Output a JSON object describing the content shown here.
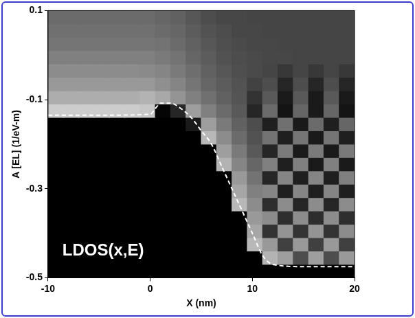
{
  "chart_data": {
    "type": "heatmap",
    "x_label": "X (nm)",
    "y_label": "A [EL] (1/eV-m)",
    "xlim": [
      -10,
      20
    ],
    "ylim": [
      -0.5,
      0.1
    ],
    "xticks": [
      -10,
      0,
      10,
      20
    ],
    "yticks": [
      -0.5,
      -0.3,
      -0.1,
      0.1
    ],
    "grid": false,
    "zlim": [
      0,
      1
    ],
    "x_bins": [
      -10,
      -8.5,
      -7,
      -5.5,
      -4,
      -2.5,
      -1,
      0.5,
      2,
      3.5,
      5,
      6.5,
      8,
      9.5,
      11,
      12.5,
      14,
      15.5,
      17,
      18.5,
      20
    ],
    "y_bins": [
      -0.5,
      -0.47,
      -0.44,
      -0.41,
      -0.38,
      -0.35,
      -0.32,
      -0.29,
      -0.26,
      -0.23,
      -0.2,
      -0.17,
      -0.14,
      -0.11,
      -0.08,
      -0.05,
      -0.02,
      0.01,
      0.04,
      0.07,
      0.1
    ],
    "cells": [
      [
        0,
        0,
        0,
        0,
        0,
        0,
        0,
        0,
        0,
        0,
        0,
        0,
        0,
        0,
        0,
        0,
        0,
        0,
        0,
        0
      ],
      [
        0,
        0,
        0,
        0,
        0,
        0,
        0,
        0,
        0,
        0,
        0,
        0,
        0,
        0,
        0.7,
        0.62,
        0.3,
        0.62,
        0.3,
        0.6
      ],
      [
        0,
        0,
        0,
        0,
        0,
        0,
        0,
        0,
        0,
        0,
        0,
        0,
        0,
        0.72,
        0.6,
        0.25,
        0.6,
        0.25,
        0.6,
        0.25
      ],
      [
        0,
        0,
        0,
        0,
        0,
        0,
        0,
        0,
        0,
        0,
        0,
        0,
        0,
        0.65,
        0.2,
        0.58,
        0.2,
        0.58,
        0.2,
        0.55
      ],
      [
        0,
        0,
        0,
        0,
        0,
        0,
        0,
        0,
        0,
        0,
        0,
        0,
        0,
        0.6,
        0.55,
        0.18,
        0.55,
        0.18,
        0.55,
        0.18
      ],
      [
        0,
        0,
        0,
        0,
        0,
        0,
        0,
        0,
        0,
        0,
        0,
        0,
        0.72,
        0.55,
        0.18,
        0.55,
        0.15,
        0.55,
        0.15,
        0.55
      ],
      [
        0,
        0,
        0,
        0,
        0,
        0,
        0,
        0,
        0,
        0,
        0,
        0,
        0.65,
        0.5,
        0.52,
        0.12,
        0.52,
        0.12,
        0.52,
        0.12
      ],
      [
        0,
        0,
        0,
        0,
        0,
        0,
        0,
        0,
        0,
        0,
        0,
        0,
        0.6,
        0.45,
        0.15,
        0.52,
        0.12,
        0.52,
        0.12,
        0.5
      ],
      [
        0,
        0,
        0,
        0,
        0,
        0,
        0,
        0,
        0,
        0,
        0,
        0.7,
        0.52,
        0.4,
        0.5,
        0.12,
        0.5,
        0.1,
        0.5,
        0.1
      ],
      [
        0,
        0,
        0,
        0,
        0,
        0,
        0,
        0,
        0,
        0,
        0,
        0.62,
        0.48,
        0.35,
        0.15,
        0.48,
        0.1,
        0.48,
        0.1,
        0.48
      ],
      [
        0,
        0,
        0,
        0,
        0,
        0,
        0,
        0,
        0,
        0,
        0.72,
        0.55,
        0.42,
        0.32,
        0.45,
        0.12,
        0.46,
        0.1,
        0.46,
        0.12
      ],
      [
        0,
        0,
        0,
        0,
        0,
        0,
        0,
        0,
        0,
        0.1,
        0.62,
        0.48,
        0.38,
        0.3,
        0.12,
        0.44,
        0.1,
        0.42,
        0.12,
        0.4
      ],
      [
        0.8,
        0.8,
        0.8,
        0.8,
        0.8,
        0.8,
        0.78,
        0.02,
        0.15,
        0.62,
        0.5,
        0.42,
        0.35,
        0.15,
        0.42,
        0.08,
        0.4,
        0.1,
        0.4,
        0.08
      ],
      [
        0.68,
        0.68,
        0.68,
        0.68,
        0.68,
        0.68,
        0.7,
        0.66,
        0.58,
        0.5,
        0.44,
        0.38,
        0.33,
        0.2,
        0.35,
        0.1,
        0.35,
        0.1,
        0.35,
        0.1
      ],
      [
        0.6,
        0.6,
        0.6,
        0.6,
        0.6,
        0.6,
        0.6,
        0.56,
        0.52,
        0.46,
        0.4,
        0.36,
        0.32,
        0.26,
        0.3,
        0.15,
        0.3,
        0.15,
        0.3,
        0.15
      ],
      [
        0.55,
        0.55,
        0.55,
        0.55,
        0.55,
        0.55,
        0.54,
        0.52,
        0.48,
        0.43,
        0.38,
        0.34,
        0.31,
        0.29,
        0.27,
        0.22,
        0.27,
        0.22,
        0.27,
        0.22
      ],
      [
        0.5,
        0.5,
        0.5,
        0.5,
        0.5,
        0.5,
        0.5,
        0.48,
        0.45,
        0.4,
        0.36,
        0.32,
        0.3,
        0.29,
        0.28,
        0.28,
        0.27,
        0.27,
        0.27,
        0.27
      ],
      [
        0.46,
        0.46,
        0.46,
        0.46,
        0.46,
        0.46,
        0.46,
        0.45,
        0.42,
        0.38,
        0.34,
        0.31,
        0.29,
        0.28,
        0.28,
        0.27,
        0.27,
        0.27,
        0.27,
        0.27
      ],
      [
        0.44,
        0.44,
        0.44,
        0.44,
        0.44,
        0.44,
        0.44,
        0.42,
        0.4,
        0.36,
        0.32,
        0.3,
        0.28,
        0.28,
        0.27,
        0.27,
        0.27,
        0.27,
        0.27,
        0.27
      ],
      [
        0.42,
        0.42,
        0.42,
        0.42,
        0.42,
        0.42,
        0.42,
        0.4,
        0.38,
        0.34,
        0.3,
        0.28,
        0.28,
        0.27,
        0.27,
        0.27,
        0.27,
        0.27,
        0.27,
        0.27
      ]
    ],
    "series": [
      {
        "type": "line",
        "color": "#ffffff",
        "line_style": "dashed",
        "x": [
          -10,
          -5,
          0,
          0.5,
          1,
          2,
          3,
          4,
          5,
          6,
          7,
          8,
          9,
          10,
          11,
          12,
          15,
          20
        ],
        "values": [
          -0.135,
          -0.135,
          -0.133,
          -0.12,
          -0.108,
          -0.108,
          -0.12,
          -0.14,
          -0.17,
          -0.2,
          -0.25,
          -0.3,
          -0.35,
          -0.4,
          -0.45,
          -0.47,
          -0.475,
          -0.475
        ]
      }
    ],
    "annotations": [
      {
        "text": "LDOS(x,E)",
        "x": -8.6,
        "y": -0.44,
        "color": "#ffffff"
      }
    ]
  }
}
